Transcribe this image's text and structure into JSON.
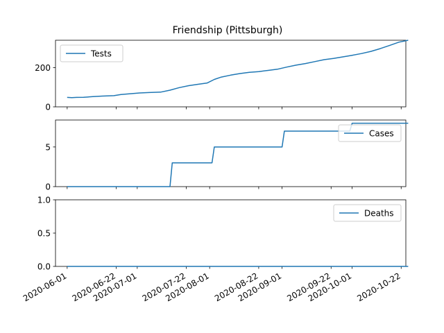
{
  "chart_data": {
    "type": "line",
    "title": "Friendship (Pittsburgh)",
    "x_ticks": [
      "2020-06-01",
      "2020-06-22",
      "2020-07-01",
      "2020-07-22",
      "2020-08-01",
      "2020-08-22",
      "2020-09-01",
      "2020-09-22",
      "2020-10-01",
      "2020-10-22"
    ],
    "xlim": [
      "2020-05-27",
      "2020-10-24"
    ],
    "panels": [
      {
        "name": "Tests",
        "ylim": [
          0,
          340
        ],
        "y_ticks": [
          0,
          200
        ],
        "legend": "upper left",
        "points": [
          [
            "2020-06-01",
            48
          ],
          [
            "2020-06-03",
            47
          ],
          [
            "2020-06-05",
            48
          ],
          [
            "2020-06-08",
            49
          ],
          [
            "2020-06-12",
            52
          ],
          [
            "2020-06-16",
            55
          ],
          [
            "2020-06-21",
            57
          ],
          [
            "2020-06-24",
            63
          ],
          [
            "2020-06-28",
            67
          ],
          [
            "2020-07-02",
            71
          ],
          [
            "2020-07-06",
            73
          ],
          [
            "2020-07-11",
            75
          ],
          [
            "2020-07-15",
            85
          ],
          [
            "2020-07-19",
            98
          ],
          [
            "2020-07-23",
            108
          ],
          [
            "2020-07-27",
            115
          ],
          [
            "2020-07-31",
            122
          ],
          [
            "2020-08-03",
            140
          ],
          [
            "2020-08-06",
            152
          ],
          [
            "2020-08-10",
            162
          ],
          [
            "2020-08-14",
            170
          ],
          [
            "2020-08-18",
            176
          ],
          [
            "2020-08-22",
            180
          ],
          [
            "2020-08-26",
            186
          ],
          [
            "2020-08-30",
            192
          ],
          [
            "2020-09-03",
            203
          ],
          [
            "2020-09-07",
            213
          ],
          [
            "2020-09-11",
            221
          ],
          [
            "2020-09-15",
            231
          ],
          [
            "2020-09-19",
            241
          ],
          [
            "2020-09-23",
            247
          ],
          [
            "2020-09-27",
            255
          ],
          [
            "2020-10-01",
            263
          ],
          [
            "2020-10-05",
            272
          ],
          [
            "2020-10-09",
            283
          ],
          [
            "2020-10-13",
            297
          ],
          [
            "2020-10-17",
            313
          ],
          [
            "2020-10-21",
            330
          ],
          [
            "2020-10-25",
            340
          ]
        ]
      },
      {
        "name": "Cases",
        "ylim": [
          0,
          8.4
        ],
        "y_ticks": [
          0,
          5
        ],
        "legend": "upper right",
        "points": [
          [
            "2020-06-01",
            0
          ],
          [
            "2020-07-15",
            0
          ],
          [
            "2020-07-16",
            3
          ],
          [
            "2020-08-02",
            3
          ],
          [
            "2020-08-03",
            5
          ],
          [
            "2020-09-01",
            5
          ],
          [
            "2020-09-02",
            7
          ],
          [
            "2020-09-30",
            7
          ],
          [
            "2020-10-01",
            8
          ],
          [
            "2020-10-25",
            8
          ]
        ]
      },
      {
        "name": "Deaths",
        "ylim": [
          0,
          1.0
        ],
        "y_ticks": [
          0.0,
          0.5,
          1.0
        ],
        "y_tick_labels": [
          "0.0",
          "0.5",
          "1.0"
        ],
        "legend": "upper right",
        "points": [
          [
            "2020-06-01",
            0
          ],
          [
            "2020-10-25",
            0
          ]
        ]
      }
    ]
  }
}
